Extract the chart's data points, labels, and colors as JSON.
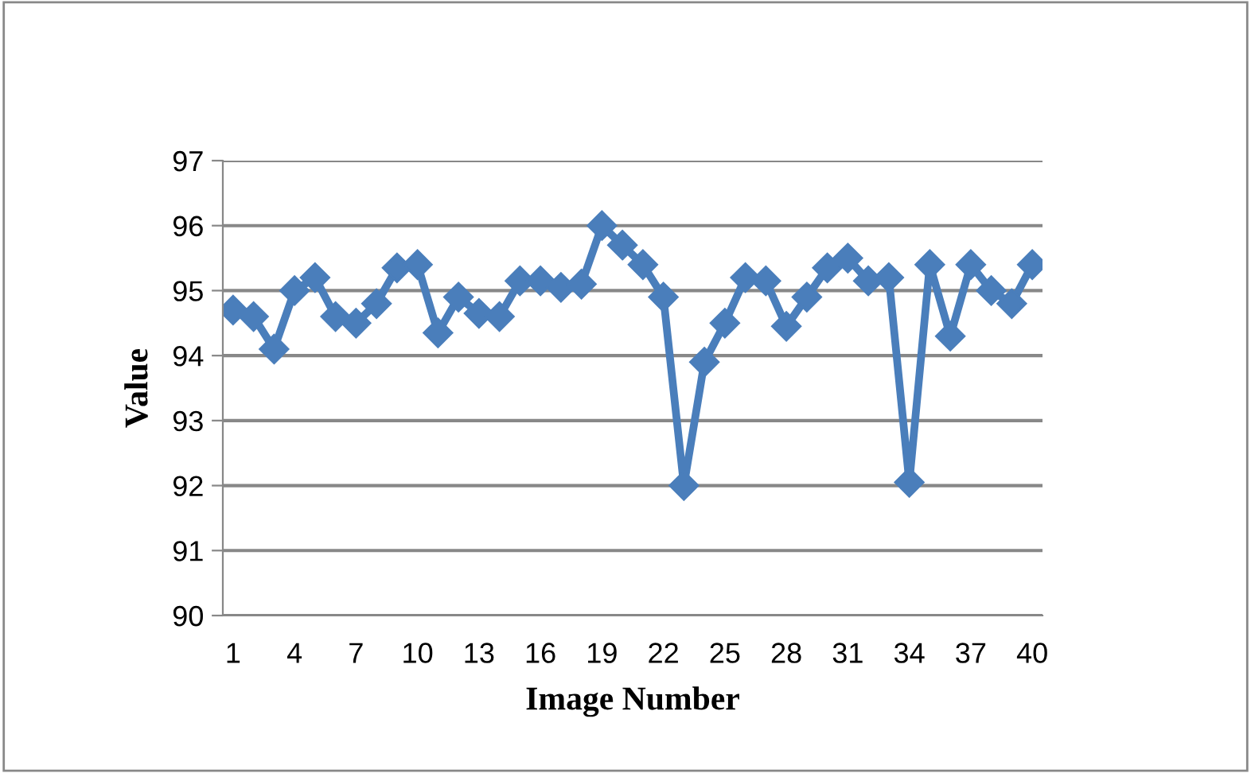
{
  "chart_data": {
    "type": "line",
    "xlabel": "Image Number",
    "ylabel": "Value",
    "categories": [
      "1",
      null,
      null,
      "4",
      null,
      null,
      "7",
      null,
      null,
      "10",
      null,
      null,
      "13",
      null,
      null,
      "16",
      null,
      null,
      "19",
      null,
      null,
      "22",
      null,
      null,
      "25",
      null,
      null,
      "28",
      null,
      null,
      "31",
      null,
      null,
      "34",
      null,
      null,
      "37",
      null,
      null,
      "40"
    ],
    "series": [
      {
        "color": "#4a7ebb",
        "values": [
          94.7,
          94.6,
          94.1,
          95.0,
          95.2,
          94.6,
          94.5,
          94.8,
          95.35,
          95.4,
          94.35,
          94.9,
          94.65,
          94.6,
          95.15,
          95.15,
          95.05,
          95.1,
          96.0,
          95.7,
          95.4,
          94.9,
          92.0,
          93.9,
          94.5,
          95.2,
          95.15,
          94.45,
          94.9,
          95.35,
          95.5,
          95.15,
          95.2,
          92.05,
          95.4,
          94.3,
          95.4,
          95.0,
          94.8,
          95.4
        ]
      }
    ],
    "ylim": [
      90,
      97
    ],
    "yticks": [
      90,
      91,
      92,
      93,
      94,
      95,
      96,
      97
    ],
    "grid": "y",
    "marker": "diamond",
    "line_style": "solid"
  }
}
